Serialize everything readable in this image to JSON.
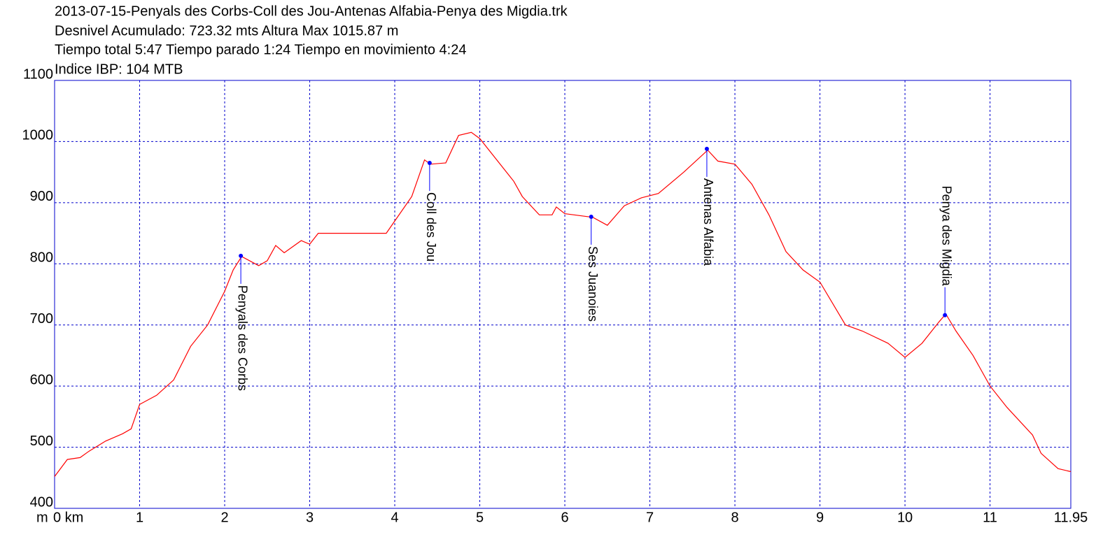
{
  "chart_data": {
    "type": "line",
    "title_lines": [
      "2013-07-15-Penyals des Corbs-Coll des Jou-Antenas Alfabia-Penya des Migdia.trk",
      "Desnivel Acumulado: 723.32 mts  Altura Max 1015.87 m",
      "Tiempo total 5:47 Tiempo parado 1:24 Tiempo en movimiento 4:24",
      "Indice IBP: 104 MTB"
    ],
    "y_label": "m",
    "xlim": [
      0,
      11.95
    ],
    "ylim": [
      400,
      1100
    ],
    "xticks": [
      {
        "value": 0,
        "label": "0 km"
      },
      1,
      2,
      3,
      4,
      5,
      6,
      7,
      8,
      9,
      10,
      11,
      11.95
    ],
    "yticks": [
      400,
      500,
      600,
      700,
      800,
      900,
      1000,
      1100
    ],
    "grid": true,
    "series": [
      {
        "color": "#ff0000",
        "x": [
          0,
          0.15,
          0.3,
          0.4,
          0.6,
          0.8,
          0.9,
          1.0,
          1.2,
          1.4,
          1.6,
          1.8,
          2.0,
          2.1,
          2.2,
          2.4,
          2.5,
          2.6,
          2.7,
          2.9,
          3.0,
          3.1,
          3.5,
          3.9,
          4.0,
          4.2,
          4.35,
          4.42,
          4.6,
          4.75,
          4.9,
          5.0,
          5.4,
          5.5,
          5.7,
          5.85,
          5.9,
          6.0,
          6.33,
          6.5,
          6.7,
          6.9,
          7.1,
          7.4,
          7.68,
          7.8,
          8.0,
          8.2,
          8.4,
          8.6,
          8.8,
          9.0,
          9.15,
          9.3,
          9.5,
          9.8,
          10.0,
          10.2,
          10.4,
          10.48,
          10.6,
          10.8,
          11.0,
          11.2,
          11.5,
          11.6,
          11.8,
          11.95
        ],
        "values": [
          452,
          480,
          483,
          493,
          510,
          522,
          530,
          570,
          585,
          610,
          665,
          700,
          755,
          790,
          812,
          797,
          805,
          830,
          818,
          838,
          832,
          850,
          850,
          850,
          870,
          910,
          970,
          963,
          965,
          1010,
          1015,
          1005,
          935,
          910,
          880,
          880,
          893,
          882,
          876,
          863,
          895,
          908,
          915,
          950,
          986,
          968,
          963,
          930,
          880,
          820,
          790,
          770,
          735,
          700,
          690,
          670,
          647,
          670,
          705,
          718,
          690,
          650,
          600,
          565,
          520,
          490,
          465,
          460
        ]
      }
    ],
    "waypoints_color": "#0000ff",
    "waypoints": [
      {
        "name": "Penyals des Corbs",
        "x": 2.19,
        "y": 813,
        "placement": "below"
      },
      {
        "name": "Coll des Jou",
        "x": 4.41,
        "y": 965,
        "placement": "below"
      },
      {
        "name": "Ses Juanoies",
        "x": 6.31,
        "y": 877,
        "placement": "below"
      },
      {
        "name": "Antenas Alfabia",
        "x": 7.67,
        "y": 988,
        "placement": "below"
      },
      {
        "name": "Penya des Migdia",
        "x": 10.47,
        "y": 716,
        "placement": "above"
      }
    ]
  }
}
